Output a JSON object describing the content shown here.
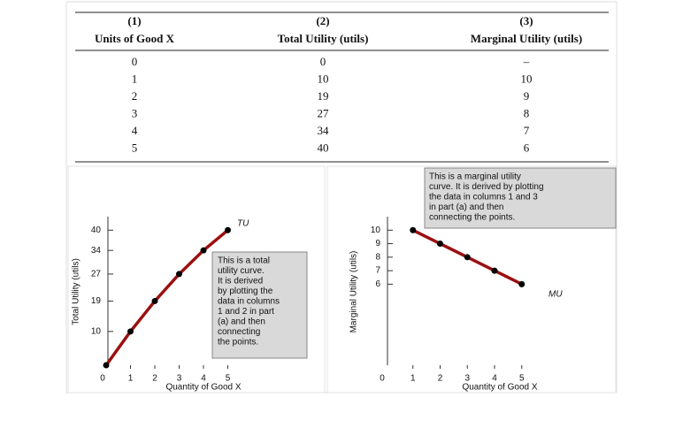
{
  "table": {
    "headers": [
      [
        "(1)",
        "Units of Good X"
      ],
      [
        "(2)",
        "Total Utility (utils)"
      ],
      [
        "(3)",
        "Marginal Utility (utils)"
      ]
    ],
    "rows": [
      [
        "0",
        "0",
        "–"
      ],
      [
        "1",
        "10",
        "10"
      ],
      [
        "2",
        "19",
        "9"
      ],
      [
        "3",
        "27",
        "8"
      ],
      [
        "4",
        "34",
        "7"
      ],
      [
        "5",
        "40",
        "6"
      ]
    ]
  },
  "chart_data": [
    {
      "type": "line",
      "x": [
        0,
        1,
        2,
        3,
        4,
        5
      ],
      "series": [
        {
          "name": "TU",
          "color": "#9b1010",
          "values": [
            0,
            10,
            19,
            27,
            34,
            40
          ]
        }
      ],
      "xlim": [
        0,
        8
      ],
      "ylim": [
        0,
        44
      ],
      "xticks": [
        0,
        1,
        2,
        3,
        4,
        5
      ],
      "yticks": [
        10,
        19,
        27,
        34,
        40
      ],
      "xlabel": "Quantity of Good X",
      "ylabel": "Total Utility (utils)",
      "annotation": [
        "This is a total",
        "utility curve.",
        "It is derived",
        "by plotting the",
        "data in columns",
        "1 and 2 in part",
        "(a) and then",
        "connecting",
        "the points."
      ]
    },
    {
      "type": "line",
      "x": [
        1,
        2,
        3,
        4,
        5
      ],
      "series": [
        {
          "name": "MU",
          "color": "#9b1010",
          "values": [
            10,
            9,
            8,
            7,
            6
          ]
        }
      ],
      "xlim": [
        0,
        8
      ],
      "ylim": [
        0,
        11
      ],
      "xticks": [
        0,
        1,
        2,
        3,
        4,
        5
      ],
      "yticks": [
        6,
        7,
        8,
        9,
        10
      ],
      "xlabel": "Quantity of Good X",
      "ylabel": "Marginal Utility (utils)",
      "annotation": [
        "This is a marginal utility",
        "curve. It is derived by plotting",
        "the data in columns 1 and 3",
        "in part (a) and then",
        "connecting the points."
      ]
    }
  ]
}
